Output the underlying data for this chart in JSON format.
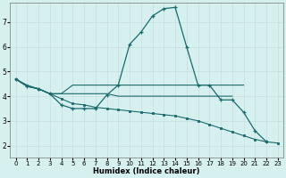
{
  "xlabel": "Humidex (Indice chaleur)",
  "xlim": [
    -0.5,
    23.5
  ],
  "ylim": [
    1.5,
    7.8
  ],
  "xticks": [
    0,
    1,
    2,
    3,
    4,
    5,
    6,
    7,
    8,
    9,
    10,
    11,
    12,
    13,
    14,
    15,
    16,
    17,
    18,
    19,
    20,
    21,
    22,
    23
  ],
  "yticks": [
    2,
    3,
    4,
    5,
    6,
    7
  ],
  "background_color": "#d6efef",
  "line_color": "#1a6b6b",
  "grid_color": "#c8e0e0",
  "lines": [
    {
      "x": [
        0,
        1,
        2,
        3,
        4,
        5,
        6,
        7,
        8,
        9,
        10,
        11,
        12,
        13,
        14,
        15,
        16,
        17,
        18,
        19,
        20,
        21,
        22
      ],
      "y": [
        4.7,
        4.4,
        4.3,
        4.1,
        3.65,
        3.5,
        3.5,
        3.5,
        4.05,
        4.45,
        6.1,
        6.6,
        7.25,
        7.55,
        7.6,
        6.0,
        4.45,
        4.45,
        3.85,
        3.85,
        3.35,
        2.6,
        2.15
      ],
      "marker": "+",
      "lw": 0.9
    },
    {
      "x": [
        0,
        1,
        2,
        3,
        4,
        5,
        6,
        7,
        8,
        9,
        10,
        11,
        12,
        13,
        14,
        15,
        16,
        17,
        18,
        19,
        20
      ],
      "y": [
        4.7,
        4.4,
        4.3,
        4.1,
        4.1,
        4.45,
        4.45,
        4.45,
        4.45,
        4.45,
        4.45,
        4.45,
        4.45,
        4.45,
        4.45,
        4.45,
        4.45,
        4.45,
        4.45,
        4.45,
        4.45
      ],
      "marker": null,
      "lw": 0.8
    },
    {
      "x": [
        0,
        1,
        2,
        3,
        4,
        5,
        6,
        7,
        8,
        9,
        10,
        11,
        12,
        13,
        14,
        15,
        16,
        17,
        18,
        19
      ],
      "y": [
        4.7,
        4.4,
        4.3,
        4.1,
        4.1,
        4.1,
        4.1,
        4.1,
        4.1,
        4.0,
        4.0,
        4.0,
        4.0,
        4.0,
        4.0,
        4.0,
        4.0,
        4.0,
        4.0,
        4.0
      ],
      "marker": null,
      "lw": 0.8
    },
    {
      "x": [
        0,
        1,
        2,
        3,
        4,
        5,
        6,
        7,
        8,
        9,
        10,
        11,
        12,
        13,
        14,
        15,
        16,
        17,
        18,
        19,
        20,
        21,
        22,
        23
      ],
      "y": [
        4.7,
        4.45,
        4.3,
        4.1,
        3.9,
        3.7,
        3.65,
        3.55,
        3.5,
        3.45,
        3.4,
        3.35,
        3.3,
        3.25,
        3.2,
        3.1,
        3.0,
        2.85,
        2.7,
        2.55,
        2.4,
        2.25,
        2.15,
        2.1
      ],
      "marker": "s",
      "lw": 0.8
    }
  ]
}
